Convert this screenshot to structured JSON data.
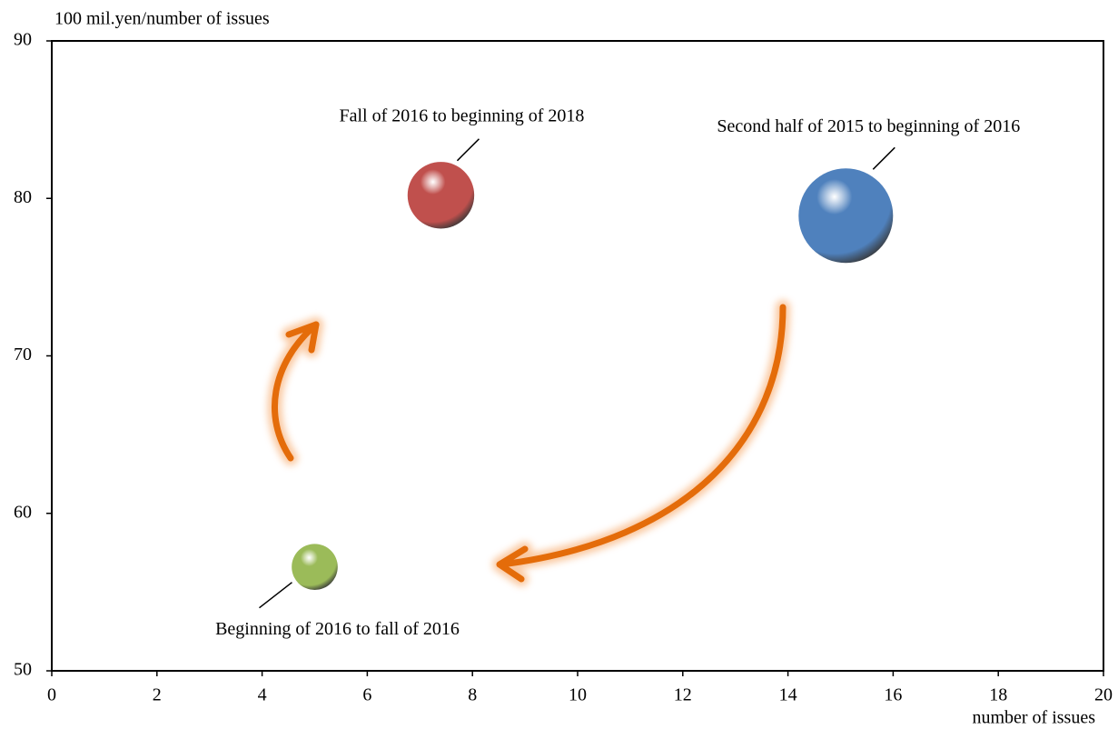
{
  "chart_data": {
    "type": "bubble",
    "y_label": "100 mil.yen/number of issues",
    "x_label": "number of issues",
    "xlim": [
      0,
      20
    ],
    "xticks": [
      0,
      2,
      4,
      6,
      8,
      10,
      12,
      14,
      16,
      18,
      20
    ],
    "ylim": [
      50,
      90
    ],
    "yticks": [
      50,
      60,
      70,
      80,
      90
    ],
    "series": [
      {
        "name": "Fall of 2016 to beginning of 2018",
        "color": "#c0504d",
        "x": [
          7.4
        ],
        "values": [
          80.2
        ],
        "sizes": [
          594
        ]
      },
      {
        "name": "Second half of 2015 to beginning of 2016",
        "color": "#4f81bd",
        "x": [
          15.1
        ],
        "values": [
          78.9
        ],
        "sizes": [
          1193
        ]
      },
      {
        "name": "Beginning of 2016 to fall of 2016",
        "color": "#9bbb59",
        "x": [
          5.0
        ],
        "values": [
          56.6
        ],
        "sizes": [
          283
        ]
      }
    ]
  }
}
